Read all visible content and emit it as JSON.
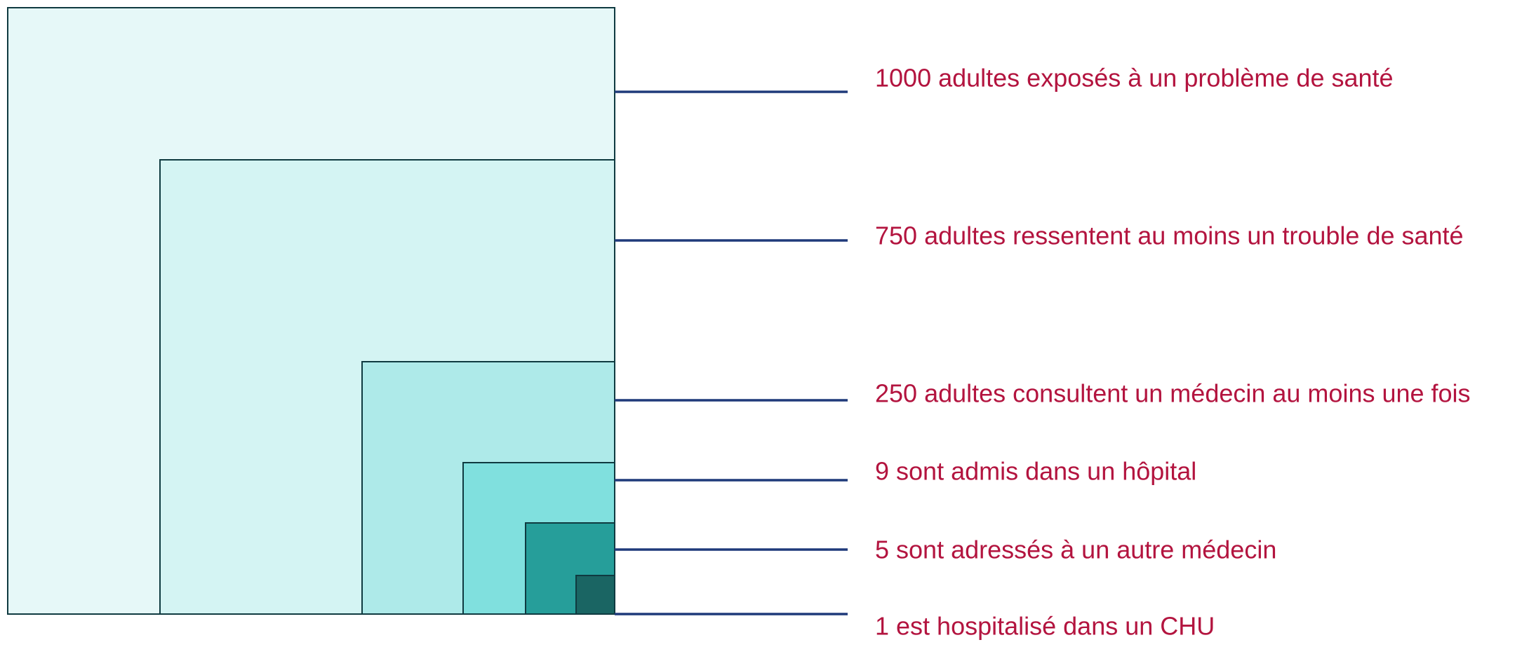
{
  "items": [
    {
      "label": "1000 adultes exposés à un problème de santé"
    },
    {
      "label": "750 adultes ressentent au moins un trouble de santé"
    },
    {
      "label": "250 adultes consultent un médecin au moins une fois"
    },
    {
      "label": "9 sont admis dans un hôpital"
    },
    {
      "label": "5 sont adressés à un autre médecin"
    },
    {
      "label": "1 est hospitalisé dans un CHU"
    }
  ]
}
